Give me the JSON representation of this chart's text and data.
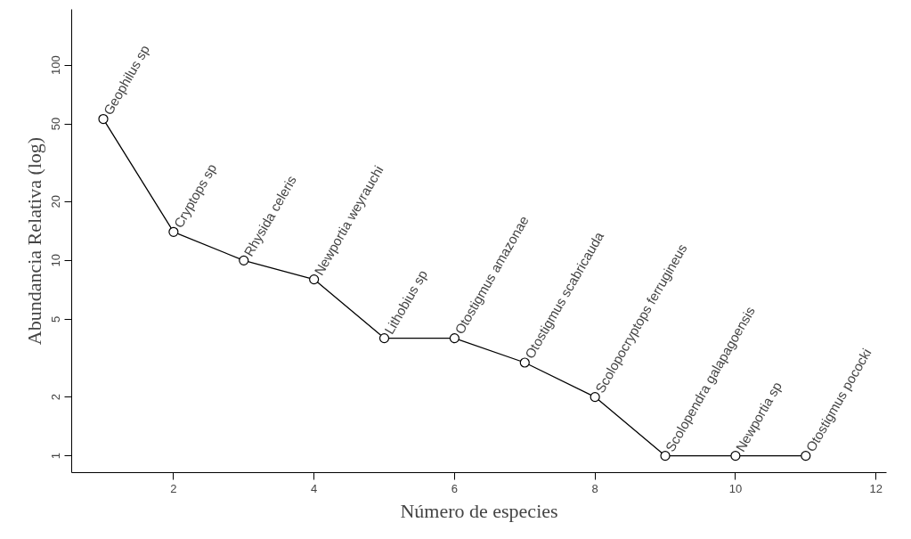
{
  "chart_data": {
    "type": "line",
    "xlabel": "Número de especies",
    "ylabel": "Abundancia Relativa (log)",
    "x": [
      1,
      2,
      3,
      4,
      5,
      6,
      7,
      8,
      9,
      10,
      11
    ],
    "series": [
      {
        "color": "#000000",
        "values": [
          53,
          14,
          10,
          8,
          4,
          4,
          3,
          2,
          1,
          1,
          1
        ]
      }
    ],
    "log": "y",
    "marker": "circle",
    "line_style": "solid",
    "xlim": [
      0.55,
      12.15
    ],
    "xticks": [
      2,
      4,
      6,
      8,
      10,
      12
    ],
    "ylim": [
      0.82,
      193
    ],
    "yticks": [
      1,
      2,
      5,
      10,
      20,
      50,
      100
    ],
    "annotations": [
      {
        "text": "Geophilus sp",
        "x": 1,
        "y": 53
      },
      {
        "text": "Cryptops sp",
        "x": 2,
        "y": 14
      },
      {
        "text": "Rhysida celeris",
        "x": 3,
        "y": 10
      },
      {
        "text": "Newportia weyrauchi",
        "x": 4,
        "y": 8
      },
      {
        "text": "Lithobius sp",
        "x": 5,
        "y": 4
      },
      {
        "text": "Otostigmus amazonae",
        "x": 6,
        "y": 4
      },
      {
        "text": "Otostigmus scabricauda",
        "x": 7,
        "y": 3
      },
      {
        "text": "Scolopocryptops ferrugineus",
        "x": 8,
        "y": 2
      },
      {
        "text": "Scolopendra galapagoensis",
        "x": 9,
        "y": 1
      },
      {
        "text": "Newportia sp",
        "x": 10,
        "y": 1
      },
      {
        "text": "Otostigmus pococki",
        "x": 11,
        "y": 1
      }
    ]
  }
}
